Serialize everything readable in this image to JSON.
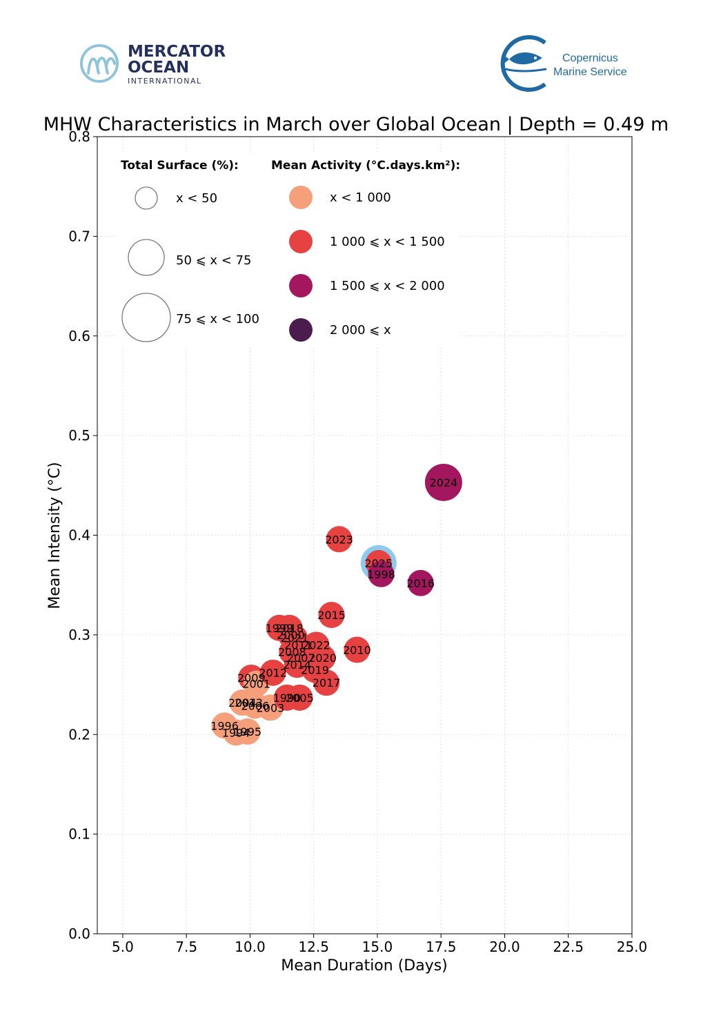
{
  "logos": {
    "left_line1": "MERCATOR",
    "left_line2": "OCEAN",
    "left_line3": "INTERNATIONAL",
    "right_line1": "Copernicus",
    "right_line2": "Marine Service"
  },
  "colors": {
    "cat_lt1000": "#f5a07a",
    "cat_1000_1500": "#e64242",
    "cat_1500_2000": "#a3175e",
    "cat_ge2000": "#4b1d4e",
    "highlight": "#8ec9ef",
    "mo_blue": "#24305e",
    "mo_light": "#8fc4dd",
    "cms_blue": "#1f6aa5"
  },
  "chart_data": {
    "type": "scatter",
    "title": "MHW Characteristics in March over Global Ocean | Depth = 0.49 m",
    "xlabel": "Mean Duration (Days)",
    "ylabel": "Mean Intensity (°C)",
    "xlim": [
      4,
      25
    ],
    "ylim": [
      0,
      0.8
    ],
    "xticks": [
      "5.0",
      "7.5",
      "10.0",
      "12.5",
      "15.0",
      "17.5",
      "20.0",
      "22.5",
      "25.0"
    ],
    "xtick_values": [
      5,
      7.5,
      10,
      12.5,
      15,
      17.5,
      20,
      22.5,
      25
    ],
    "yticks": [
      "0.0",
      "0.1",
      "0.2",
      "0.3",
      "0.4",
      "0.5",
      "0.6",
      "0.7",
      "0.8"
    ],
    "ytick_values": [
      0,
      0.1,
      0.2,
      0.3,
      0.4,
      0.5,
      0.6,
      0.7,
      0.8
    ],
    "grid": true,
    "legend_size": {
      "title": "Total Surface (%):",
      "entries": [
        {
          "label": "x < 50",
          "size_class": "small"
        },
        {
          "label": "50 ⩽ x < 75",
          "size_class": "medium"
        },
        {
          "label": "75 ⩽ x < 100",
          "size_class": "large"
        }
      ]
    },
    "legend_color": {
      "title": "Mean Activity (°C.days.km²):",
      "entries": [
        {
          "label": "x < 1 000",
          "category": "cat_lt1000"
        },
        {
          "label": "1 000 ⩽ x < 1 500",
          "category": "cat_1000_1500"
        },
        {
          "label": "1 500 ⩽ x < 2 000",
          "category": "cat_1500_2000"
        },
        {
          "label": "2 000 ⩽ x",
          "category": "cat_ge2000"
        }
      ]
    },
    "points": [
      {
        "label": "1996",
        "x": 9.0,
        "y": 0.209,
        "category": "cat_lt1000",
        "size_class": "small"
      },
      {
        "label": "1994",
        "x": 9.45,
        "y": 0.202,
        "category": "cat_lt1000",
        "size_class": "small"
      },
      {
        "label": "1995",
        "x": 9.9,
        "y": 0.203,
        "category": "cat_lt1000",
        "size_class": "small"
      },
      {
        "label": "2004",
        "x": 9.7,
        "y": 0.232,
        "category": "cat_lt1000",
        "size_class": "small"
      },
      {
        "label": "2013",
        "x": 9.95,
        "y": 0.232,
        "category": "cat_lt1000",
        "size_class": "small"
      },
      {
        "label": "2006",
        "x": 10.2,
        "y": 0.229,
        "category": "cat_lt1000",
        "size_class": "small"
      },
      {
        "label": "2003",
        "x": 10.8,
        "y": 0.227,
        "category": "cat_lt1000",
        "size_class": "small"
      },
      {
        "label": "2009",
        "x": 10.05,
        "y": 0.257,
        "category": "cat_1000_1500",
        "size_class": "small"
      },
      {
        "label": "2001",
        "x": 10.25,
        "y": 0.251,
        "category": "cat_lt1000",
        "size_class": "small"
      },
      {
        "label": "2012",
        "x": 10.9,
        "y": 0.262,
        "category": "cat_1000_1500",
        "size_class": "small"
      },
      {
        "label": "1990",
        "x": 11.45,
        "y": 0.237,
        "category": "cat_1000_1500",
        "size_class": "small"
      },
      {
        "label": "2005",
        "x": 11.95,
        "y": 0.237,
        "category": "cat_1000_1500",
        "size_class": "small"
      },
      {
        "label": "2017",
        "x": 13.0,
        "y": 0.252,
        "category": "cat_1000_1500",
        "size_class": "small"
      },
      {
        "label": "2019",
        "x": 12.55,
        "y": 0.265,
        "category": "cat_1000_1500",
        "size_class": "small"
      },
      {
        "label": "2014",
        "x": 11.85,
        "y": 0.27,
        "category": "cat_1000_1500",
        "size_class": "small"
      },
      {
        "label": "2007",
        "x": 12.0,
        "y": 0.277,
        "category": "cat_1000_1500",
        "size_class": "small"
      },
      {
        "label": "2008",
        "x": 11.65,
        "y": 0.283,
        "category": "cat_1000_1500",
        "size_class": "small"
      },
      {
        "label": "2011",
        "x": 11.9,
        "y": 0.29,
        "category": "cat_1000_1500",
        "size_class": "small"
      },
      {
        "label": "2021",
        "x": 11.75,
        "y": 0.297,
        "category": "cat_1000_1500",
        "size_class": "small"
      },
      {
        "label": "2022",
        "x": 12.6,
        "y": 0.29,
        "category": "cat_1000_1500",
        "size_class": "small"
      },
      {
        "label": "2020",
        "x": 12.85,
        "y": 0.277,
        "category": "cat_1000_1500",
        "size_class": "small"
      },
      {
        "label": "1999",
        "x": 11.15,
        "y": 0.307,
        "category": "cat_1000_1500",
        "size_class": "small"
      },
      {
        "label": "2018",
        "x": 11.55,
        "y": 0.307,
        "category": "cat_1000_1500",
        "size_class": "small"
      },
      {
        "label": "2000",
        "x": 11.6,
        "y": 0.3,
        "category": "cat_1000_1500",
        "size_class": "small"
      },
      {
        "label": "2010",
        "x": 14.2,
        "y": 0.285,
        "category": "cat_1000_1500",
        "size_class": "small"
      },
      {
        "label": "2015",
        "x": 13.2,
        "y": 0.32,
        "category": "cat_1000_1500",
        "size_class": "small"
      },
      {
        "label": "2023",
        "x": 13.5,
        "y": 0.396,
        "category": "cat_1000_1500",
        "size_class": "small"
      },
      {
        "label": "2025",
        "x": 15.05,
        "y": 0.372,
        "category": "cat_1000_1500",
        "size_class": "small",
        "highlight": true
      },
      {
        "label": "1998",
        "x": 15.15,
        "y": 0.361,
        "category": "cat_1500_2000",
        "size_class": "small"
      },
      {
        "label": "2016",
        "x": 16.7,
        "y": 0.352,
        "category": "cat_1500_2000",
        "size_class": "small"
      },
      {
        "label": "2024",
        "x": 17.6,
        "y": 0.453,
        "category": "cat_1500_2000",
        "size_class": "medium"
      }
    ]
  }
}
